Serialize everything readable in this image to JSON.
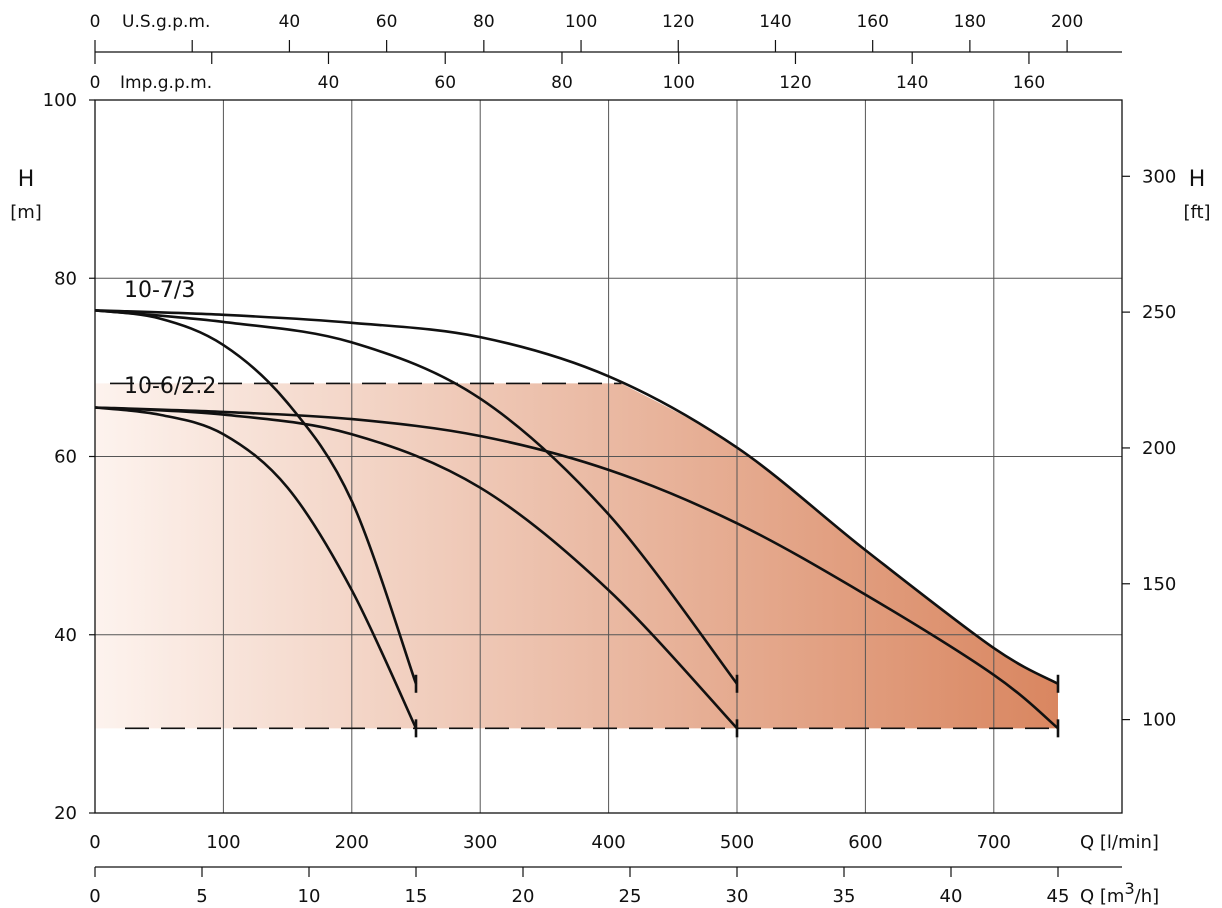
{
  "chart_data": {
    "type": "line",
    "x_unit_label": "Q [l/min]",
    "x_unit_label_m3h": "Q [m",
    "x_unit_sup": "3",
    "x_unit_tail": "/h]",
    "y_left_label_top": "H",
    "y_left_label_bottom": "[m]",
    "y_right_label_top": "H",
    "y_right_label_bottom": "[ft]",
    "usgpm_label": "U.S.g.p.m.",
    "impgpm_label": "Imp.g.p.m.",
    "xlim": [
      0,
      800
    ],
    "ylim": [
      20,
      100
    ],
    "x_ticks": [
      0,
      100,
      200,
      300,
      400,
      500,
      600,
      700
    ],
    "y_ticks": [
      20,
      40,
      60,
      80,
      100
    ],
    "ft_ticks": [
      "100",
      "150",
      "200",
      "250",
      "300"
    ],
    "m3h_ticks": [
      "0",
      "5",
      "10",
      "15",
      "20",
      "25",
      "30",
      "35",
      "40",
      "45"
    ],
    "usgpm_ticks": [
      "0",
      "40",
      "60",
      "80",
      "100",
      "120",
      "140",
      "160",
      "180",
      "200"
    ],
    "impgpm_ticks": [
      "0",
      "40",
      "60",
      "80",
      "100",
      "120",
      "140",
      "160"
    ],
    "grid": true,
    "operating_range": {
      "h_max": 68.2,
      "h_min": 29.5,
      "q_max": 750,
      "fill_color_start": "#fdf3ee",
      "fill_color_end": "#d98660"
    },
    "curve_labels": [
      "10-7/3",
      "10-6/2.2"
    ],
    "series": [
      {
        "group": "10-7/3",
        "end_mark": true,
        "points": [
          [
            0,
            76.4
          ],
          [
            50,
            75.5
          ],
          [
            100,
            72.5
          ],
          [
            150,
            66
          ],
          [
            200,
            55
          ],
          [
            250,
            34.5
          ]
        ]
      },
      {
        "group": "10-7/3",
        "end_mark": true,
        "points": [
          [
            0,
            76.4
          ],
          [
            100,
            75.1
          ],
          [
            200,
            72.8
          ],
          [
            300,
            66.5
          ],
          [
            400,
            53.5
          ],
          [
            500,
            34.5
          ]
        ]
      },
      {
        "group": "10-7/3",
        "end_mark": true,
        "points": [
          [
            0,
            76.4
          ],
          [
            100,
            75.9
          ],
          [
            200,
            75.0
          ],
          [
            300,
            73.4
          ],
          [
            400,
            69.0
          ],
          [
            500,
            61.0
          ],
          [
            600,
            49.5
          ],
          [
            700,
            38.5
          ],
          [
            750,
            34.5
          ]
        ]
      },
      {
        "group": "10-6/2.2",
        "end_mark": true,
        "points": [
          [
            0,
            65.5
          ],
          [
            50,
            64.7
          ],
          [
            100,
            62.5
          ],
          [
            150,
            56.5
          ],
          [
            200,
            45
          ],
          [
            250,
            29.5
          ]
        ]
      },
      {
        "group": "10-6/2.2",
        "end_mark": true,
        "points": [
          [
            0,
            65.5
          ],
          [
            100,
            64.7
          ],
          [
            200,
            62.5
          ],
          [
            300,
            56.5
          ],
          [
            400,
            45.0
          ],
          [
            500,
            29.5
          ]
        ]
      },
      {
        "group": "10-6/2.2",
        "end_mark": true,
        "points": [
          [
            0,
            65.5
          ],
          [
            100,
            65.0
          ],
          [
            200,
            64.2
          ],
          [
            300,
            62.3
          ],
          [
            400,
            58.5
          ],
          [
            500,
            52.5
          ],
          [
            600,
            44.5
          ],
          [
            700,
            35.5
          ],
          [
            750,
            29.5
          ]
        ]
      }
    ]
  }
}
